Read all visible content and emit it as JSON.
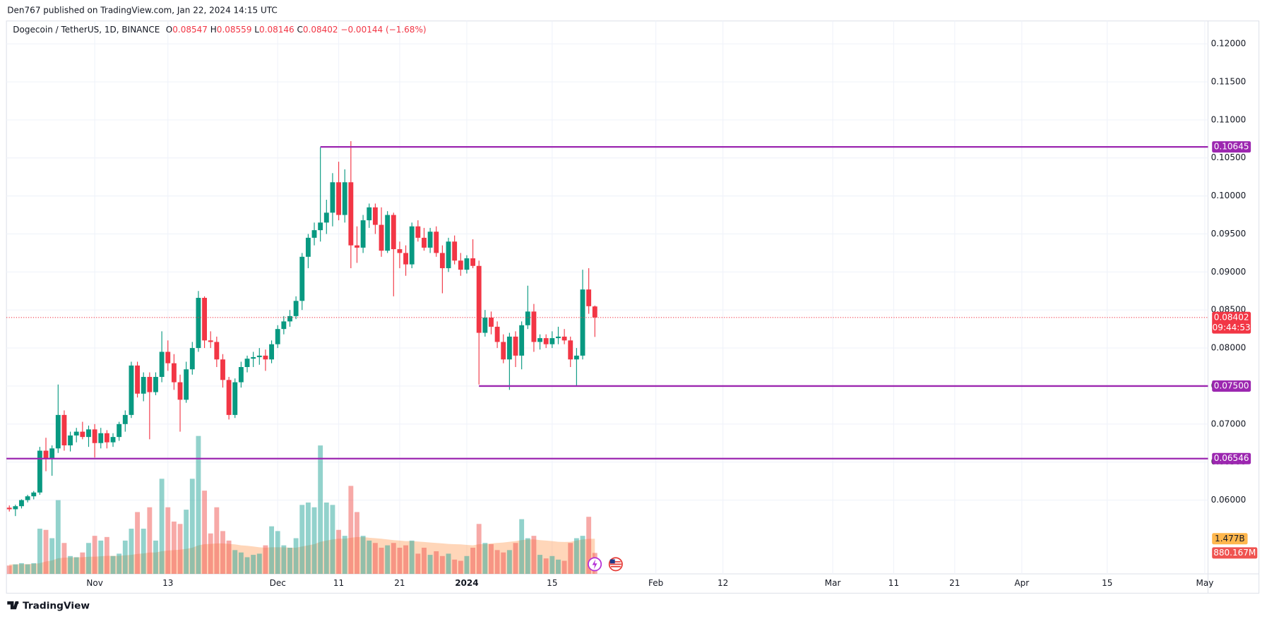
{
  "chart_data": {
    "type": "candlestick",
    "published": "Den767 published on TradingView.com, Jan 22, 2024 14:15 UTC",
    "symbol": "Dogecoin / TetherUS, 1D, BINANCE",
    "legend_labels": [
      "O",
      "H",
      "L",
      "C"
    ],
    "change": "−0.00144 (−1.68%)",
    "countdown": "09:44:53",
    "footer": "TradingView",
    "up_color": "#089981",
    "down_color": "#f23645",
    "volume_up_color": "#26a69a",
    "volume_down_color": "#ef5350",
    "volume_ma_color": "#ff9850",
    "level_color": "#9c27b0",
    "grid": true,
    "x": [
      "2023-10-18",
      "2023-10-19",
      "2023-10-20",
      "2023-10-21",
      "2023-10-22",
      "2023-10-23",
      "2023-10-24",
      "2023-10-25",
      "2023-10-26",
      "2023-10-27",
      "2023-10-28",
      "2023-10-29",
      "2023-10-30",
      "2023-10-31",
      "2023-11-01",
      "2023-11-02",
      "2023-11-03",
      "2023-11-04",
      "2023-11-05",
      "2023-11-06",
      "2023-11-07",
      "2023-11-08",
      "2023-11-09",
      "2023-11-10",
      "2023-11-11",
      "2023-11-12",
      "2023-11-13",
      "2023-11-14",
      "2023-11-15",
      "2023-11-16",
      "2023-11-17",
      "2023-11-18",
      "2023-11-19",
      "2023-11-20",
      "2023-11-21",
      "2023-11-22",
      "2023-11-23",
      "2023-11-24",
      "2023-11-25",
      "2023-11-26",
      "2023-11-27",
      "2023-11-28",
      "2023-11-29",
      "2023-11-30",
      "2023-12-01",
      "2023-12-02",
      "2023-12-03",
      "2023-12-04",
      "2023-12-05",
      "2023-12-06",
      "2023-12-07",
      "2023-12-08",
      "2023-12-09",
      "2023-12-10",
      "2023-12-11",
      "2023-12-12",
      "2023-12-13",
      "2023-12-14",
      "2023-12-15",
      "2023-12-16",
      "2023-12-17",
      "2023-12-18",
      "2023-12-19",
      "2023-12-20",
      "2023-12-21",
      "2023-12-22",
      "2023-12-23",
      "2023-12-24",
      "2023-12-25",
      "2023-12-26",
      "2023-12-27",
      "2023-12-28",
      "2023-12-29",
      "2023-12-30",
      "2023-12-31",
      "2024-01-01",
      "2024-01-02",
      "2024-01-03",
      "2024-01-04",
      "2024-01-05",
      "2024-01-06",
      "2024-01-07",
      "2024-01-08",
      "2024-01-09",
      "2024-01-10",
      "2024-01-11",
      "2024-01-12",
      "2024-01-13",
      "2024-01-14",
      "2024-01-15",
      "2024-01-16",
      "2024-01-17",
      "2024-01-18",
      "2024-01-19",
      "2024-01-20",
      "2024-01-21",
      "2024-01-22"
    ],
    "open": [
      0.059,
      0.0588,
      0.0592,
      0.06,
      0.0605,
      0.061,
      0.0665,
      0.0655,
      0.0668,
      0.0712,
      0.0672,
      0.0685,
      0.069,
      0.0683,
      0.0693,
      0.0675,
      0.0688,
      0.0676,
      0.0683,
      0.07,
      0.0712,
      0.0777,
      0.074,
      0.0762,
      0.0742,
      0.0762,
      0.0795,
      0.078,
      0.0755,
      0.0732,
      0.0772,
      0.08,
      0.0866,
      0.081,
      0.0808,
      0.0785,
      0.0758,
      0.0712,
      0.0755,
      0.0775,
      0.0786,
      0.0788,
      0.079,
      0.0785,
      0.0805,
      0.0825,
      0.0835,
      0.0842,
      0.0862,
      0.092,
      0.0945,
      0.0955,
      0.0965,
      0.0978,
      0.1018,
      0.0975,
      0.1018,
      0.0935,
      0.0932,
      0.0968,
      0.0985,
      0.0962,
      0.0928,
      0.0975,
      0.093,
      0.0925,
      0.091,
      0.096,
      0.0945,
      0.0932,
      0.0953,
      0.0925,
      0.0905,
      0.094,
      0.0915,
      0.0903,
      0.0918,
      0.0908,
      0.082,
      0.084,
      0.0828,
      0.0808,
      0.0785,
      0.0815,
      0.079,
      0.083,
      0.0848,
      0.0808,
      0.0813,
      0.0805,
      0.0813,
      0.0815,
      0.081,
      0.0785,
      0.079,
      0.0877,
      0.08547
    ],
    "high": [
      0.0593,
      0.0594,
      0.0601,
      0.0607,
      0.0612,
      0.067,
      0.0682,
      0.0672,
      0.0752,
      0.0718,
      0.069,
      0.0695,
      0.0703,
      0.0698,
      0.07,
      0.0695,
      0.0692,
      0.0688,
      0.0703,
      0.0718,
      0.0782,
      0.0782,
      0.0768,
      0.0768,
      0.0768,
      0.0822,
      0.081,
      0.0792,
      0.0765,
      0.0782,
      0.0808,
      0.0875,
      0.0868,
      0.0822,
      0.0815,
      0.0792,
      0.0762,
      0.076,
      0.0782,
      0.079,
      0.0795,
      0.08,
      0.0798,
      0.081,
      0.083,
      0.0842,
      0.085,
      0.0868,
      0.0925,
      0.095,
      0.0965,
      0.1064,
      0.0995,
      0.103,
      0.1045,
      0.1035,
      0.1072,
      0.096,
      0.0975,
      0.099,
      0.099,
      0.0985,
      0.098,
      0.0978,
      0.094,
      0.0935,
      0.0965,
      0.0968,
      0.0958,
      0.0958,
      0.096,
      0.0935,
      0.0945,
      0.0948,
      0.0925,
      0.0922,
      0.0943,
      0.0915,
      0.085,
      0.0848,
      0.0835,
      0.0818,
      0.082,
      0.0822,
      0.0835,
      0.0882,
      0.0858,
      0.0818,
      0.0818,
      0.0822,
      0.0828,
      0.0825,
      0.0815,
      0.08,
      0.0903,
      0.0905,
      0.08559
    ],
    "low": [
      0.0585,
      0.0579,
      0.0589,
      0.0597,
      0.0601,
      0.0607,
      0.0638,
      0.0632,
      0.0662,
      0.0665,
      0.0664,
      0.0676,
      0.068,
      0.067,
      0.0656,
      0.0668,
      0.0668,
      0.067,
      0.0678,
      0.069,
      0.0708,
      0.0735,
      0.073,
      0.068,
      0.0738,
      0.0755,
      0.077,
      0.0745,
      0.069,
      0.0728,
      0.0765,
      0.0795,
      0.08,
      0.08,
      0.0775,
      0.0748,
      0.0706,
      0.0708,
      0.0748,
      0.0768,
      0.0775,
      0.0778,
      0.077,
      0.078,
      0.08,
      0.0818,
      0.0828,
      0.0838,
      0.085,
      0.0905,
      0.0935,
      0.094,
      0.095,
      0.096,
      0.0968,
      0.0965,
      0.0905,
      0.0912,
      0.0925,
      0.0958,
      0.095,
      0.092,
      0.0925,
      0.0868,
      0.0905,
      0.0895,
      0.0905,
      0.094,
      0.0928,
      0.0925,
      0.092,
      0.0872,
      0.09,
      0.091,
      0.0895,
      0.0898,
      0.0905,
      0.0752,
      0.0815,
      0.0818,
      0.08,
      0.078,
      0.0745,
      0.0775,
      0.0772,
      0.0825,
      0.0795,
      0.0798,
      0.08,
      0.08,
      0.0805,
      0.0805,
      0.0775,
      0.075,
      0.0785,
      0.0845,
      0.08146
    ],
    "close": [
      0.0588,
      0.0592,
      0.06,
      0.0605,
      0.061,
      0.0665,
      0.0655,
      0.0668,
      0.0712,
      0.0672,
      0.0685,
      0.069,
      0.0683,
      0.0693,
      0.0675,
      0.0688,
      0.0676,
      0.0683,
      0.07,
      0.0712,
      0.0777,
      0.074,
      0.0762,
      0.0742,
      0.0762,
      0.0795,
      0.078,
      0.0755,
      0.0732,
      0.0772,
      0.08,
      0.0866,
      0.081,
      0.0808,
      0.0785,
      0.0758,
      0.0712,
      0.0755,
      0.0775,
      0.0786,
      0.0788,
      0.079,
      0.0785,
      0.0805,
      0.0825,
      0.0835,
      0.0842,
      0.0862,
      0.092,
      0.0945,
      0.0955,
      0.0965,
      0.0978,
      0.1018,
      0.0975,
      0.1018,
      0.0935,
      0.0932,
      0.0968,
      0.0985,
      0.0962,
      0.0928,
      0.0975,
      0.093,
      0.0925,
      0.091,
      0.096,
      0.0945,
      0.0932,
      0.0953,
      0.0925,
      0.0905,
      0.094,
      0.0915,
      0.0903,
      0.0918,
      0.0908,
      0.082,
      0.084,
      0.0828,
      0.0808,
      0.0785,
      0.0815,
      0.079,
      0.083,
      0.0848,
      0.0808,
      0.0813,
      0.0805,
      0.0813,
      0.0815,
      0.081,
      0.0785,
      0.079,
      0.0877,
      0.0855,
      0.08402
    ],
    "volume": [
      350000000.0,
      400000000.0,
      450000000.0,
      400000000.0,
      450000000.0,
      1900000000.0,
      1850000000.0,
      1500000000.0,
      3100000000.0,
      1300000000.0,
      750000000.0,
      700000000.0,
      900000000.0,
      1300000000.0,
      1600000000.0,
      1400000000.0,
      1550000000.0,
      750000000.0,
      850000000.0,
      1400000000.0,
      1900000000.0,
      2600000000.0,
      1900000000.0,
      2800000000.0,
      1400000000.0,
      4000000000.0,
      2800000000.0,
      2200000000.0,
      2100000000.0,
      2700000000.0,
      4000000000.0,
      5800000000.0,
      3500000000.0,
      1700000000.0,
      2800000000.0,
      1800000000.0,
      1400000000.0,
      1000000000.0,
      900000000.0,
      700000000.0,
      800000000.0,
      850000000.0,
      1200000000.0,
      2000000000.0,
      1800000000.0,
      1200000000.0,
      1100000000.0,
      1500000000.0,
      2900000000.0,
      3000000000.0,
      2800000000.0,
      5400000000.0,
      3000000000.0,
      2900000000.0,
      1850000000.0,
      1600000000.0,
      3700000000.0,
      2600000000.0,
      1600000000.0,
      1400000000.0,
      1300000000.0,
      1100000000.0,
      1200000000.0,
      1300000000.0,
      1100000000.0,
      1200000000.0,
      1400000000.0,
      850000000.0,
      1100000000.0,
      800000000.0,
      950000000.0,
      750000000.0,
      850000000.0,
      600000000.0,
      550000000.0,
      750000000.0,
      1100000000.0,
      2100000000.0,
      1300000000.0,
      1250000000.0,
      1000000000.0,
      900000000.0,
      1000000000.0,
      1300000000.0,
      2300000000.0,
      1500000000.0,
      1600000000.0,
      800000000.0,
      650000000.0,
      750000000.0,
      600000000.0,
      550000000.0,
      1300000000.0,
      1500000000.0,
      1600000000.0,
      2400000000.0,
      880167000
    ],
    "volume_label": "880.167M",
    "volume_ma": [
      400000000.0,
      400000000.0,
      410000000.0,
      410000000.0,
      420000000.0,
      450000000.0,
      520000000.0,
      560000000.0,
      660000000.0,
      680000000.0,
      690000000.0,
      700000000.0,
      700000000.0,
      720000000.0,
      720000000.0,
      740000000.0,
      760000000.0,
      760000000.0,
      760000000.0,
      780000000.0,
      800000000.0,
      840000000.0,
      860000000.0,
      900000000.0,
      900000000.0,
      950000000.0,
      980000000.0,
      1000000000.0,
      1020000000.0,
      1050000000.0,
      1100000000.0,
      1200000000.0,
      1250000000.0,
      1260000000.0,
      1280000000.0,
      1280000000.0,
      1260000000.0,
      1240000000.0,
      1200000000.0,
      1180000000.0,
      1150000000.0,
      1120000000.0,
      1100000000.0,
      1120000000.0,
      1120000000.0,
      1120000000.0,
      1100000000.0,
      1100000000.0,
      1150000000.0,
      1200000000.0,
      1250000000.0,
      1350000000.0,
      1400000000.0,
      1450000000.0,
      1480000000.0,
      1480000000.0,
      1520000000.0,
      1550000000.0,
      1550000000.0,
      1520000000.0,
      1500000000.0,
      1480000000.0,
      1450000000.0,
      1420000000.0,
      1400000000.0,
      1380000000.0,
      1380000000.0,
      1360000000.0,
      1340000000.0,
      1320000000.0,
      1300000000.0,
      1280000000.0,
      1260000000.0,
      1250000000.0,
      1240000000.0,
      1220000000.0,
      1200000000.0,
      1250000000.0,
      1250000000.0,
      1280000000.0,
      1300000000.0,
      1320000000.0,
      1350000000.0,
      1380000000.0,
      1420000000.0,
      1450000000.0,
      1450000000.0,
      1420000000.0,
      1400000000.0,
      1380000000.0,
      1350000000.0,
      1340000000.0,
      1350000000.0,
      1400000000.0,
      1450000000.0,
      1470000000.0,
      1477000000.0
    ],
    "volume_ma_label": "1.477B",
    "vlim": [
      0,
      6000000000.0
    ],
    "levels": [
      {
        "value": 0.10645,
        "label": "0.10645",
        "from": "2023-12-08"
      },
      {
        "value": 0.075,
        "label": "0.07500",
        "from": "2024-01-03"
      },
      {
        "value": 0.06546,
        "label": "0.06546"
      }
    ],
    "xlim": [
      "2023-10-17",
      "2024-05-01"
    ],
    "xticks": [
      {
        "value": "2023-11-01",
        "label": "Nov"
      },
      {
        "value": "2023-11-13",
        "label": "13"
      },
      {
        "value": "2023-12-01",
        "label": "Dec"
      },
      {
        "value": "2023-12-11",
        "label": "11"
      },
      {
        "value": "2023-12-21",
        "label": "21"
      },
      {
        "value": "2024-01-01",
        "label": "2024"
      },
      {
        "value": "2024-01-15",
        "label": "15"
      },
      {
        "value": "2024-02-01",
        "label": "Feb"
      },
      {
        "value": "2024-02-12",
        "label": "12"
      },
      {
        "value": "2024-03-01",
        "label": "Mar"
      },
      {
        "value": "2024-03-11",
        "label": "11"
      },
      {
        "value": "2024-03-21",
        "label": "21"
      },
      {
        "value": "2024-04-01",
        "label": "Apr"
      },
      {
        "value": "2024-04-15",
        "label": "15"
      },
      {
        "value": "2024-05-01",
        "label": "May"
      }
    ],
    "ylim": [
      0.0503,
      0.121
    ],
    "yticks": [
      {
        "value": 0.06,
        "label": "0.06000"
      },
      {
        "value": 0.065,
        "label": "0.06500"
      },
      {
        "value": 0.07,
        "label": "0.07000"
      },
      {
        "value": 0.075,
        "label": "0.07500"
      },
      {
        "value": 0.08,
        "label": "0.08000"
      },
      {
        "value": 0.085,
        "label": "0.08500"
      },
      {
        "value": 0.09,
        "label": "0.09000"
      },
      {
        "value": 0.095,
        "label": "0.09500"
      },
      {
        "value": 0.1,
        "label": "0.10000"
      },
      {
        "value": 0.105,
        "label": "0.10500"
      },
      {
        "value": 0.11,
        "label": "0.11000"
      },
      {
        "value": 0.115,
        "label": "0.11500"
      },
      {
        "value": 0.12,
        "label": "0.12000"
      }
    ]
  }
}
